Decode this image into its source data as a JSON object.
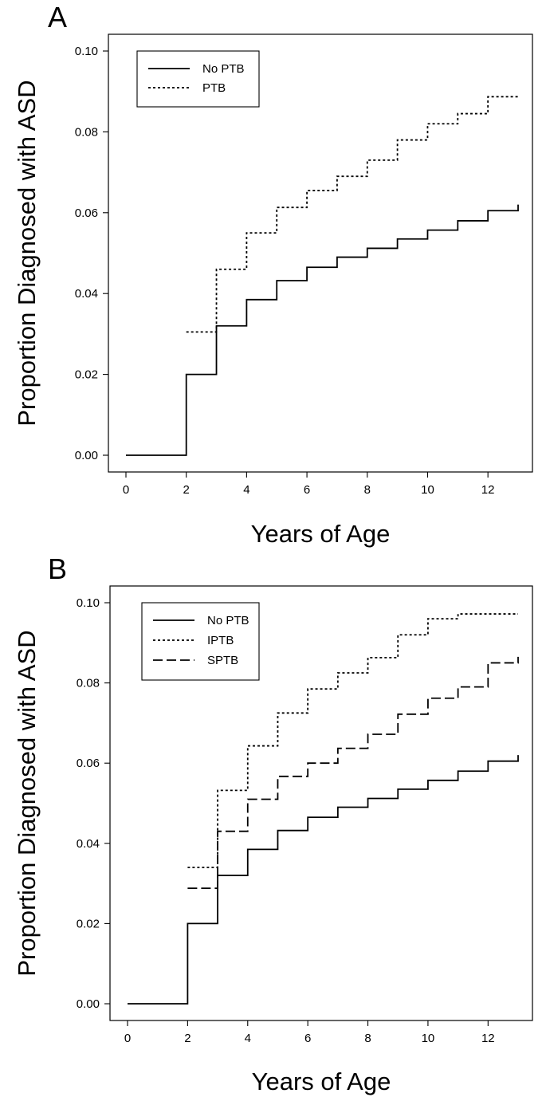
{
  "chart_data": [
    {
      "type": "line",
      "step": true,
      "panel_label": "A",
      "xlabel": "Years of Age",
      "ylabel": "Proportion Diagnosed with ASD",
      "xlim": [
        0,
        13
      ],
      "ylim": [
        0,
        0.1
      ],
      "x_ticks": [
        0,
        2,
        4,
        6,
        8,
        10,
        12
      ],
      "x_tick_labels": [
        "0",
        "2",
        "4",
        "6",
        "8",
        "10",
        "12"
      ],
      "y_ticks": [
        0,
        0.02,
        0.04,
        0.06,
        0.08,
        0.1
      ],
      "y_tick_labels": [
        "0.00",
        "0.02",
        "0.04",
        "0.06",
        "0.08",
        "0.10"
      ],
      "grid": false,
      "legend": "top-left",
      "series": [
        {
          "name": "No PTB",
          "style": "solid",
          "x": [
            0,
            2,
            3,
            4,
            5,
            6,
            7,
            8,
            9,
            10,
            11,
            12,
            13
          ],
          "values": [
            0,
            0.02,
            0.032,
            0.0385,
            0.0432,
            0.0465,
            0.049,
            0.0512,
            0.0535,
            0.0557,
            0.058,
            0.0605,
            0.062
          ]
        },
        {
          "name": "PTB",
          "style": "dotted",
          "x": [
            2,
            3,
            4,
            5,
            6,
            7,
            8,
            9,
            10,
            11,
            12,
            13
          ],
          "values": [
            0.0305,
            0.046,
            0.055,
            0.0613,
            0.0655,
            0.069,
            0.073,
            0.078,
            0.082,
            0.0845,
            0.0887,
            0.0887
          ]
        }
      ]
    },
    {
      "type": "line",
      "step": true,
      "panel_label": "B",
      "xlabel": "Years of Age",
      "ylabel": "Proportion Diagnosed with ASD",
      "xlim": [
        0,
        13
      ],
      "ylim": [
        0,
        0.1
      ],
      "x_ticks": [
        0,
        2,
        4,
        6,
        8,
        10,
        12
      ],
      "x_tick_labels": [
        "0",
        "2",
        "4",
        "6",
        "8",
        "10",
        "12"
      ],
      "y_ticks": [
        0,
        0.02,
        0.04,
        0.06,
        0.08,
        0.1
      ],
      "y_tick_labels": [
        "0.00",
        "0.02",
        "0.04",
        "0.06",
        "0.08",
        "0.10"
      ],
      "grid": false,
      "legend": "top-left",
      "series": [
        {
          "name": "No PTB",
          "style": "solid",
          "x": [
            0,
            2,
            3,
            4,
            5,
            6,
            7,
            8,
            9,
            10,
            11,
            12,
            13
          ],
          "values": [
            0,
            0.02,
            0.032,
            0.0385,
            0.0432,
            0.0465,
            0.049,
            0.0512,
            0.0535,
            0.0557,
            0.058,
            0.0605,
            0.062
          ]
        },
        {
          "name": "IPTB",
          "style": "dotted",
          "x": [
            2,
            3,
            4,
            5,
            6,
            7,
            8,
            9,
            10,
            11,
            12,
            13
          ],
          "values": [
            0.034,
            0.0532,
            0.0643,
            0.0725,
            0.0785,
            0.0825,
            0.0863,
            0.092,
            0.096,
            0.0972,
            0.0972,
            0.0972
          ]
        },
        {
          "name": "SPTB",
          "style": "dashed",
          "x": [
            2,
            3,
            4,
            5,
            6,
            7,
            8,
            9,
            10,
            11,
            12,
            13
          ],
          "values": [
            0.0288,
            0.043,
            0.051,
            0.0567,
            0.06,
            0.0637,
            0.0672,
            0.0722,
            0.0762,
            0.079,
            0.085,
            0.0865
          ]
        }
      ]
    }
  ]
}
